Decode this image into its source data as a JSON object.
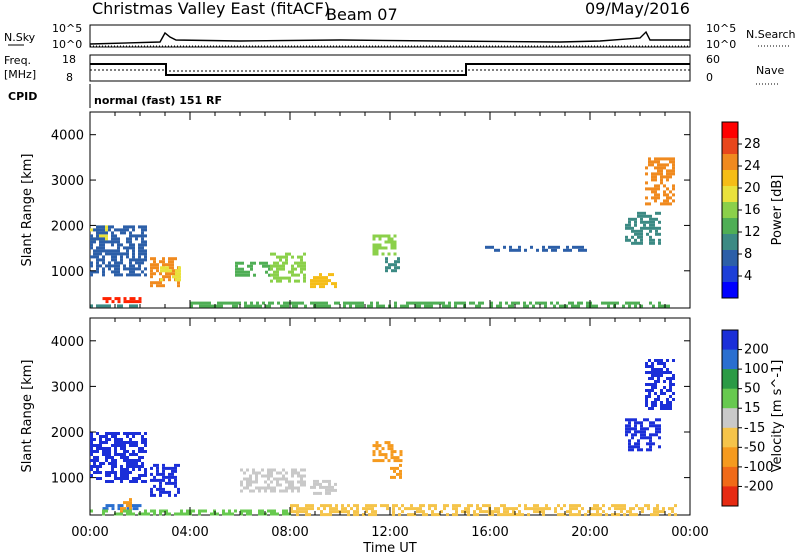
{
  "header": {
    "title": "Christmas Valley East (fitACF)",
    "beam": "Beam 07",
    "date": "09/May/2016"
  },
  "top_panels": {
    "nsky_label": "N.Sky",
    "nsky_ticks": [
      "10^5",
      "10^0"
    ],
    "nsearch_label": "N.Search",
    "nsearch_ticks": [
      "10^5",
      "10^0"
    ],
    "freq_label_top": "Freq.",
    "freq_label_units": "[MHz]",
    "freq_ticks": [
      "18",
      "8"
    ],
    "nave_label": "Nave",
    "nave_ticks": [
      "60",
      "0"
    ],
    "cpid_label": "CPID",
    "cpid_value": "normal (fast) 151 RF"
  },
  "time_axis": {
    "label": "Time UT",
    "ticks": [
      "00:00",
      "04:00",
      "08:00",
      "12:00",
      "16:00",
      "20:00",
      "00:00"
    ]
  },
  "power_colorbar": {
    "label": "Power [dB]",
    "ticks": [
      "28",
      "24",
      "20",
      "16",
      "12",
      "8",
      "4"
    ],
    "colors": [
      "#ff0000",
      "#e8471c",
      "#f08a1f",
      "#f5bd17",
      "#e9e23c",
      "#8bd04a",
      "#4fae55",
      "#3c8a84",
      "#2c5fa8",
      "#1d3fd8",
      "#0000ff"
    ]
  },
  "velocity_colorbar": {
    "label": "Velocity [m s^-1]",
    "ticks": [
      "200",
      "100",
      "50",
      "15",
      "-15",
      "-50",
      "-100",
      "-200"
    ],
    "colors": [
      "#1b2fd8",
      "#2a6fd0",
      "#2b9a45",
      "#67c94f",
      "#c9c9c9",
      "#f5c44a",
      "#f59a1e",
      "#f06a18",
      "#e62a12"
    ]
  },
  "chart_data": [
    {
      "type": "heatmap",
      "name": "Power",
      "ylabel": "Slant Range [km]",
      "xlabel": "",
      "ylim": [
        180,
        4500
      ],
      "xlim": [
        0,
        24
      ],
      "yticks": [
        1000,
        2000,
        3000,
        4000
      ],
      "blobs": [
        {
          "t0": 0.0,
          "t1": 2.0,
          "r0": 200,
          "r1": 260,
          "color": "#3c8a84"
        },
        {
          "t0": 0.5,
          "t1": 2.0,
          "r0": 300,
          "r1": 420,
          "color": "#ff2200"
        },
        {
          "t0": 0.0,
          "t1": 0.8,
          "r0": 1700,
          "r1": 2000,
          "color": "#e9e23c"
        },
        {
          "t0": 0.0,
          "t1": 2.2,
          "r0": 900,
          "r1": 2000,
          "color": "#2c5fa8"
        },
        {
          "t0": 2.4,
          "t1": 3.6,
          "r0": 700,
          "r1": 1300,
          "color": "#f08a1f"
        },
        {
          "t0": 2.8,
          "t1": 3.6,
          "r0": 800,
          "r1": 1100,
          "color": "#e9e23c"
        },
        {
          "t0": 5.8,
          "t1": 7.2,
          "r0": 900,
          "r1": 1200,
          "color": "#4fae55"
        },
        {
          "t0": 7.2,
          "t1": 8.6,
          "r0": 750,
          "r1": 1400,
          "color": "#8bd04a"
        },
        {
          "t0": 8.8,
          "t1": 9.8,
          "r0": 650,
          "r1": 950,
          "color": "#f5bd17"
        },
        {
          "t0": 11.3,
          "t1": 12.3,
          "r0": 1400,
          "r1": 1800,
          "color": "#8bd04a"
        },
        {
          "t0": 11.8,
          "t1": 12.3,
          "r0": 1000,
          "r1": 1300,
          "color": "#3c8a84"
        },
        {
          "t0": 15.8,
          "t1": 19.8,
          "r0": 1450,
          "r1": 1550,
          "color": "#2c5fa8"
        },
        {
          "t0": 21.4,
          "t1": 22.8,
          "r0": 1600,
          "r1": 2300,
          "color": "#3c8a84"
        },
        {
          "t0": 22.2,
          "t1": 23.4,
          "r0": 2500,
          "r1": 3500,
          "color": "#f08a1f"
        },
        {
          "t0": 4.0,
          "t1": 23.4,
          "r0": 190,
          "r1": 320,
          "color": "#4fae55"
        }
      ]
    },
    {
      "type": "heatmap",
      "name": "Velocity",
      "ylabel": "Slant Range [km]",
      "xlabel": "Time UT",
      "ylim": [
        180,
        4500
      ],
      "xlim": [
        0,
        24
      ],
      "yticks": [
        1000,
        2000,
        3000,
        4000
      ],
      "blobs": [
        {
          "t0": 0.0,
          "t1": 2.2,
          "r0": 900,
          "r1": 2000,
          "color": "#1b2fd8"
        },
        {
          "t0": 2.4,
          "t1": 3.6,
          "r0": 600,
          "r1": 1300,
          "color": "#1b2fd8"
        },
        {
          "t0": 0.5,
          "t1": 2.0,
          "r0": 300,
          "r1": 420,
          "color": "#2a6fd0"
        },
        {
          "t0": 1.2,
          "t1": 1.6,
          "r0": 250,
          "r1": 550,
          "color": "#f59a1e"
        },
        {
          "t0": 6.0,
          "t1": 8.6,
          "r0": 700,
          "r1": 1200,
          "color": "#c9c9c9"
        },
        {
          "t0": 8.8,
          "t1": 9.8,
          "r0": 650,
          "r1": 950,
          "color": "#c9c9c9"
        },
        {
          "t0": 11.3,
          "t1": 12.4,
          "r0": 1400,
          "r1": 1800,
          "color": "#f59a1e"
        },
        {
          "t0": 12.0,
          "t1": 12.4,
          "r0": 1000,
          "r1": 1300,
          "color": "#f59a1e"
        },
        {
          "t0": 21.4,
          "t1": 22.8,
          "r0": 1600,
          "r1": 2300,
          "color": "#1b2fd8"
        },
        {
          "t0": 22.2,
          "t1": 23.4,
          "r0": 2500,
          "r1": 3600,
          "color": "#1b2fd8"
        },
        {
          "t0": 0.0,
          "t1": 8.0,
          "r0": 190,
          "r1": 300,
          "color": "#67c94f"
        },
        {
          "t0": 8.0,
          "t1": 23.4,
          "r0": 190,
          "r1": 420,
          "color": "#f5c44a"
        }
      ]
    }
  ]
}
